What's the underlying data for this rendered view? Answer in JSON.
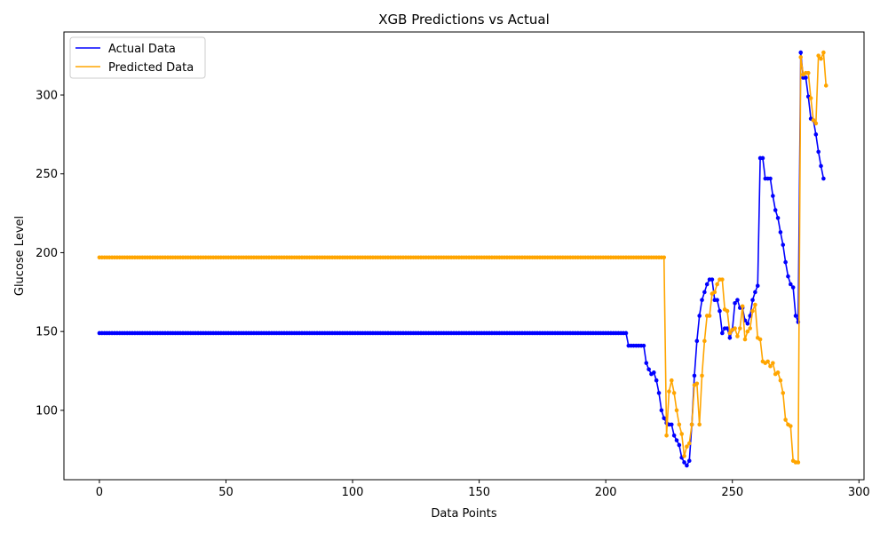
{
  "chart_data": {
    "type": "line",
    "title": "XGB Predictions vs Actual",
    "xlabel": "Data Points",
    "ylabel": "Glucose Level",
    "xlim": [
      -14,
      302
    ],
    "ylim": [
      56,
      340
    ],
    "xticks": [
      0,
      50,
      100,
      150,
      200,
      250,
      300
    ],
    "yticks": [
      100,
      150,
      200,
      250,
      300
    ],
    "legend_position": "top-left",
    "markers": true,
    "series": [
      {
        "name": "Actual Data",
        "color": "#0000ff",
        "segments": [
          {
            "from": 0,
            "to": 208,
            "value": 149
          },
          {
            "from": 209,
            "to": 215,
            "value": 141
          }
        ],
        "points": [
          [
            216,
            130
          ],
          [
            217,
            126
          ],
          [
            218,
            123
          ],
          [
            219,
            124
          ],
          [
            220,
            119
          ],
          [
            221,
            111
          ],
          [
            222,
            100
          ],
          [
            223,
            95
          ],
          [
            224,
            92
          ],
          [
            225,
            91
          ],
          [
            226,
            91
          ],
          [
            227,
            84
          ],
          [
            228,
            81
          ],
          [
            229,
            78
          ],
          [
            230,
            70
          ],
          [
            231,
            67
          ],
          [
            232,
            65
          ],
          [
            233,
            68
          ],
          [
            234,
            91
          ],
          [
            235,
            122
          ],
          [
            236,
            144
          ],
          [
            237,
            160
          ],
          [
            238,
            170
          ],
          [
            239,
            175
          ],
          [
            240,
            180
          ],
          [
            241,
            183
          ],
          [
            242,
            183
          ],
          [
            243,
            170
          ],
          [
            244,
            170
          ],
          [
            245,
            163
          ],
          [
            246,
            149
          ],
          [
            247,
            152
          ],
          [
            248,
            152
          ],
          [
            249,
            146
          ],
          [
            250,
            151
          ],
          [
            251,
            168
          ],
          [
            252,
            170
          ],
          [
            253,
            165
          ],
          [
            254,
            165
          ],
          [
            255,
            157
          ],
          [
            256,
            155
          ],
          [
            257,
            160
          ],
          [
            258,
            170
          ],
          [
            259,
            175
          ],
          [
            260,
            179
          ],
          [
            261,
            260
          ],
          [
            262,
            260
          ],
          [
            263,
            247
          ],
          [
            264,
            247
          ],
          [
            265,
            247
          ],
          [
            266,
            236
          ],
          [
            267,
            227
          ],
          [
            268,
            222
          ],
          [
            269,
            213
          ],
          [
            270,
            205
          ],
          [
            271,
            194
          ],
          [
            272,
            185
          ],
          [
            273,
            180
          ],
          [
            274,
            178
          ],
          [
            275,
            160
          ],
          [
            276,
            156
          ],
          [
            277,
            327
          ],
          [
            278,
            311
          ],
          [
            279,
            311
          ],
          [
            280,
            299
          ],
          [
            281,
            285
          ],
          [
            282,
            284
          ],
          [
            283,
            275
          ],
          [
            284,
            264
          ],
          [
            285,
            255
          ],
          [
            286,
            247
          ]
        ]
      },
      {
        "name": "Predicted Data",
        "color": "#ffa500",
        "segments": [
          {
            "from": 0,
            "to": 223,
            "value": 197
          }
        ],
        "points": [
          [
            224,
            84
          ],
          [
            225,
            112
          ],
          [
            226,
            119
          ],
          [
            227,
            111
          ],
          [
            228,
            100
          ],
          [
            229,
            91
          ],
          [
            230,
            85
          ],
          [
            231,
            71
          ],
          [
            232,
            77
          ],
          [
            233,
            79
          ],
          [
            234,
            91
          ],
          [
            235,
            116
          ],
          [
            236,
            117
          ],
          [
            237,
            91
          ],
          [
            238,
            122
          ],
          [
            239,
            144
          ],
          [
            240,
            160
          ],
          [
            241,
            160
          ],
          [
            242,
            174
          ],
          [
            243,
            175
          ],
          [
            244,
            180
          ],
          [
            245,
            183
          ],
          [
            246,
            183
          ],
          [
            247,
            164
          ],
          [
            248,
            163
          ],
          [
            249,
            149
          ],
          [
            250,
            151
          ],
          [
            251,
            152
          ],
          [
            252,
            147
          ],
          [
            253,
            152
          ],
          [
            254,
            166
          ],
          [
            255,
            145
          ],
          [
            256,
            150
          ],
          [
            257,
            152
          ],
          [
            258,
            163
          ],
          [
            259,
            167
          ],
          [
            260,
            146
          ],
          [
            261,
            145
          ],
          [
            262,
            131
          ],
          [
            263,
            130
          ],
          [
            264,
            131
          ],
          [
            265,
            128
          ],
          [
            266,
            130
          ],
          [
            267,
            123
          ],
          [
            268,
            124
          ],
          [
            269,
            119
          ],
          [
            270,
            111
          ],
          [
            271,
            94
          ],
          [
            272,
            91
          ],
          [
            273,
            90
          ],
          [
            274,
            68
          ],
          [
            275,
            67
          ],
          [
            276,
            67
          ],
          [
            277,
            324
          ],
          [
            278,
            313
          ],
          [
            279,
            314
          ],
          [
            280,
            314
          ],
          [
            281,
            298
          ],
          [
            282,
            284
          ],
          [
            283,
            282
          ],
          [
            284,
            325
          ],
          [
            285,
            323
          ],
          [
            286,
            327
          ],
          [
            287,
            306
          ]
        ]
      }
    ]
  }
}
